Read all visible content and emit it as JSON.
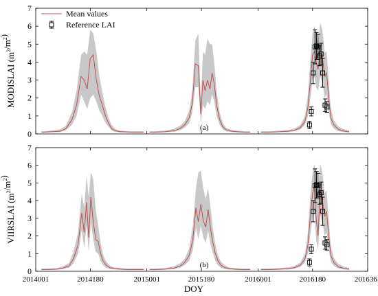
{
  "chart_data": [
    {
      "type": "line",
      "panel_label": "(a)",
      "ylabel": "MODISLAI (m²/m²)",
      "ylabel_text": "MODISLAI (m",
      "ylabel_sup": "2",
      "ylabel_mid": "/m",
      "ylabel_sup2": "2",
      "ylabel_end": ")",
      "ylim": [
        0,
        7
      ],
      "yticks": [
        "0",
        "1",
        "2",
        "3",
        "4",
        "5",
        "6",
        "7"
      ],
      "legend": {
        "placement": "top-left",
        "mean_label": "Mean values",
        "ref_label": "Reference LAI"
      },
      "segments": [
        {
          "x": [
            2014020,
            2014030,
            2014050,
            2014080,
            2014100,
            2014120,
            2014135,
            2014150,
            2014160,
            2014170,
            2014180,
            2014190,
            2014200,
            2014210,
            2014220,
            2014230,
            2014240,
            2014250,
            2014260,
            2014270,
            2014280,
            2014290,
            2014310,
            2014330,
            2014355
          ],
          "mean": [
            0.1,
            0.1,
            0.12,
            0.15,
            0.3,
            0.8,
            1.6,
            3.2,
            3.0,
            2.5,
            4.2,
            4.4,
            3.0,
            2.1,
            1.6,
            1.0,
            0.6,
            0.3,
            0.2,
            0.15,
            0.12,
            0.12,
            0.1,
            0.1,
            0.1
          ],
          "lower": [
            0.08,
            0.08,
            0.09,
            0.1,
            0.2,
            0.5,
            1.0,
            2.2,
            1.8,
            1.4,
            2.0,
            2.2,
            1.8,
            1.3,
            1.0,
            0.6,
            0.4,
            0.2,
            0.12,
            0.1,
            0.08,
            0.08,
            0.07,
            0.07,
            0.07
          ],
          "upper": [
            0.15,
            0.15,
            0.18,
            0.25,
            0.45,
            1.2,
            2.4,
            4.4,
            4.6,
            4.4,
            5.8,
            5.6,
            4.6,
            3.2,
            2.3,
            1.5,
            0.9,
            0.5,
            0.3,
            0.22,
            0.18,
            0.17,
            0.15,
            0.15,
            0.15
          ]
        },
        {
          "x": [
            2015010,
            2015030,
            2015060,
            2015090,
            2015110,
            2015125,
            2015140,
            2015150,
            2015160,
            2015170,
            2015178,
            2015185,
            2015192,
            2015200,
            2015208,
            2015215,
            2015222,
            2015230,
            2015240,
            2015250,
            2015262,
            2015280,
            2015300,
            2015320,
            2015340
          ],
          "mean": [
            0.1,
            0.1,
            0.12,
            0.18,
            0.3,
            0.5,
            0.9,
            1.7,
            3.9,
            3.8,
            1.1,
            3.0,
            2.4,
            3.0,
            2.5,
            3.4,
            2.8,
            1.6,
            0.8,
            0.4,
            0.22,
            0.15,
            0.12,
            0.1,
            0.1
          ],
          "lower": [
            0.07,
            0.07,
            0.09,
            0.12,
            0.2,
            0.35,
            0.6,
            1.2,
            2.6,
            2.6,
            0.6,
            1.6,
            1.4,
            1.8,
            1.6,
            2.2,
            1.8,
            1.0,
            0.5,
            0.25,
            0.14,
            0.1,
            0.08,
            0.07,
            0.07
          ],
          "upper": [
            0.15,
            0.15,
            0.18,
            0.28,
            0.45,
            0.7,
            1.3,
            2.4,
            5.2,
            5.6,
            1.8,
            4.6,
            4.4,
            5.3,
            5.0,
            5.0,
            4.0,
            2.4,
            1.2,
            0.6,
            0.32,
            0.22,
            0.18,
            0.15,
            0.15
          ]
        },
        {
          "x": [
            2016010,
            2016040,
            2016070,
            2016100,
            2016120,
            2016140,
            2016155,
            2016165,
            2016172,
            2016180,
            2016186,
            2016192,
            2016198,
            2016205,
            2016212,
            2016220,
            2016226,
            2016233,
            2016240,
            2016250,
            2016265,
            2016285,
            2016300
          ],
          "mean": [
            0.1,
            0.1,
            0.12,
            0.15,
            0.2,
            0.35,
            0.7,
            1.5,
            2.8,
            4.4,
            4.6,
            4.0,
            3.6,
            4.7,
            4.3,
            3.2,
            3.4,
            2.0,
            0.9,
            0.5,
            0.25,
            0.15,
            0.12
          ],
          "lower": [
            0.07,
            0.07,
            0.09,
            0.1,
            0.14,
            0.25,
            0.5,
            1.0,
            1.9,
            3.0,
            3.2,
            2.6,
            2.4,
            3.2,
            2.9,
            2.0,
            2.2,
            1.2,
            0.55,
            0.3,
            0.15,
            0.1,
            0.08
          ],
          "upper": [
            0.15,
            0.15,
            0.18,
            0.22,
            0.3,
            0.5,
            1.0,
            2.2,
            4.0,
            5.6,
            6.0,
            5.5,
            5.0,
            6.2,
            5.8,
            4.5,
            4.6,
            2.9,
            1.4,
            0.75,
            0.4,
            0.25,
            0.2
          ]
        }
      ],
      "reference": [
        {
          "x": 2016170,
          "y": 0.5,
          "err": 0.2
        },
        {
          "x": 2016176,
          "y": 1.25,
          "err": 0.25
        },
        {
          "x": 2016182,
          "y": 3.4,
          "err": 0.6
        },
        {
          "x": 2016188,
          "y": 4.85,
          "err": 0.95
        },
        {
          "x": 2016193,
          "y": 4.9,
          "err": 0.75
        },
        {
          "x": 2016198,
          "y": 4.85,
          "err": 0.7
        },
        {
          "x": 2016203,
          "y": 4.35,
          "err": 0.55
        },
        {
          "x": 2016208,
          "y": 4.45,
          "err": 0.6
        },
        {
          "x": 2016213,
          "y": 3.4,
          "err": 0.8
        },
        {
          "x": 2016221,
          "y": 1.6,
          "err": 0.35
        },
        {
          "x": 2016227,
          "y": 1.5,
          "err": 0.3
        }
      ]
    },
    {
      "type": "line",
      "panel_label": "(b)",
      "ylabel": "VIIRSLAI (m²/m²)",
      "ylabel_text": "VIIRSLAI (m",
      "ylabel_sup": "2",
      "ylabel_mid": "/m",
      "ylabel_sup2": "2",
      "ylabel_end": ")",
      "ylim": [
        0,
        7
      ],
      "yticks": [
        "0",
        "1",
        "2",
        "3",
        "4",
        "5",
        "6",
        "7"
      ],
      "segments": [
        {
          "x": [
            2014020,
            2014040,
            2014070,
            2014090,
            2014110,
            2014125,
            2014140,
            2014152,
            2014160,
            2014168,
            2014175,
            2014182,
            2014190,
            2014198,
            2014206,
            2014214,
            2014222,
            2014232,
            2014245,
            2014260,
            2014280,
            2014300,
            2014330,
            2014355
          ],
          "mean": [
            0.1,
            0.1,
            0.12,
            0.18,
            0.3,
            0.7,
            1.5,
            3.3,
            2.2,
            3.9,
            1.9,
            4.2,
            2.8,
            1.8,
            1.7,
            1.0,
            0.6,
            0.35,
            0.2,
            0.15,
            0.12,
            0.1,
            0.1,
            0.1
          ],
          "lower": [
            0.07,
            0.07,
            0.09,
            0.12,
            0.2,
            0.45,
            1.0,
            2.3,
            1.3,
            2.6,
            1.1,
            2.8,
            1.8,
            1.1,
            1.0,
            0.6,
            0.35,
            0.2,
            0.12,
            0.1,
            0.08,
            0.07,
            0.07,
            0.07
          ],
          "upper": [
            0.15,
            0.15,
            0.18,
            0.28,
            0.45,
            1.1,
            2.2,
            4.4,
            3.6,
            5.4,
            4.2,
            5.6,
            5.2,
            3.5,
            2.6,
            1.6,
            0.95,
            0.55,
            0.3,
            0.22,
            0.18,
            0.15,
            0.15,
            0.15
          ]
        },
        {
          "x": [
            2015010,
            2015030,
            2015060,
            2015090,
            2015110,
            2015125,
            2015140,
            2015152,
            2015162,
            2015170,
            2015178,
            2015186,
            2015194,
            2015202,
            2015210,
            2015218,
            2015226,
            2015234,
            2015244,
            2015255,
            2015270,
            2015290,
            2015310,
            2015340
          ],
          "mean": [
            0.1,
            0.1,
            0.12,
            0.18,
            0.3,
            0.5,
            0.9,
            1.8,
            3.6,
            2.8,
            3.8,
            2.9,
            2.5,
            3.5,
            2.4,
            1.6,
            1.0,
            0.6,
            0.35,
            0.22,
            0.15,
            0.12,
            0.1,
            0.1
          ],
          "lower": [
            0.07,
            0.07,
            0.09,
            0.12,
            0.2,
            0.35,
            0.6,
            1.2,
            2.5,
            1.8,
            2.6,
            1.9,
            1.6,
            2.3,
            1.5,
            1.0,
            0.6,
            0.35,
            0.2,
            0.13,
            0.1,
            0.08,
            0.07,
            0.07
          ],
          "upper": [
            0.15,
            0.15,
            0.18,
            0.28,
            0.45,
            0.7,
            1.3,
            2.6,
            4.7,
            5.6,
            5.7,
            4.7,
            4.1,
            4.7,
            3.6,
            2.4,
            1.5,
            0.9,
            0.55,
            0.35,
            0.22,
            0.18,
            0.15,
            0.15
          ]
        },
        {
          "x": [
            2016010,
            2016040,
            2016070,
            2016100,
            2016120,
            2016140,
            2016155,
            2016165,
            2016172,
            2016180,
            2016186,
            2016192,
            2016198,
            2016205,
            2016212,
            2016220,
            2016226,
            2016233,
            2016240,
            2016250,
            2016265,
            2016285,
            2016300
          ],
          "mean": [
            0.1,
            0.1,
            0.12,
            0.15,
            0.2,
            0.35,
            0.7,
            1.5,
            3.0,
            4.4,
            4.8,
            3.0,
            2.0,
            4.6,
            4.0,
            3.1,
            3.4,
            2.0,
            0.9,
            0.5,
            0.25,
            0.15,
            0.12
          ],
          "lower": [
            0.07,
            0.07,
            0.09,
            0.1,
            0.14,
            0.25,
            0.5,
            1.0,
            2.0,
            3.0,
            3.3,
            1.8,
            1.2,
            3.2,
            2.8,
            2.0,
            2.2,
            1.2,
            0.55,
            0.3,
            0.15,
            0.1,
            0.08
          ],
          "upper": [
            0.15,
            0.15,
            0.18,
            0.22,
            0.3,
            0.5,
            1.0,
            2.2,
            4.2,
            5.6,
            6.1,
            5.0,
            4.6,
            6.1,
            5.6,
            4.4,
            4.6,
            2.9,
            1.4,
            0.75,
            0.4,
            0.25,
            0.2
          ]
        }
      ],
      "reference": [
        {
          "x": 2016170,
          "y": 0.5,
          "err": 0.2
        },
        {
          "x": 2016176,
          "y": 1.25,
          "err": 0.25
        },
        {
          "x": 2016182,
          "y": 3.4,
          "err": 0.6
        },
        {
          "x": 2016188,
          "y": 4.85,
          "err": 0.95
        },
        {
          "x": 2016193,
          "y": 4.9,
          "err": 0.75
        },
        {
          "x": 2016198,
          "y": 4.85,
          "err": 0.7
        },
        {
          "x": 2016203,
          "y": 4.35,
          "err": 0.55
        },
        {
          "x": 2016208,
          "y": 4.45,
          "err": 0.6
        },
        {
          "x": 2016213,
          "y": 3.4,
          "err": 0.8
        },
        {
          "x": 2016221,
          "y": 1.6,
          "err": 0.35
        },
        {
          "x": 2016227,
          "y": 1.5,
          "err": 0.3
        }
      ]
    }
  ],
  "shared": {
    "xlabel": "DOY",
    "xlim": [
      2014001,
      2016361
    ],
    "xticks": [
      "2014001",
      "2014180",
      "2015001",
      "2015180",
      "2016001",
      "2016180",
      "2016361"
    ],
    "xtick_values": [
      2014001,
      2014180,
      2015001,
      2015180,
      2016001,
      2016180,
      2016361
    ],
    "series_names": {
      "mean": "Mean values",
      "reference": "Reference LAI"
    },
    "colors": {
      "mean": "#c0504d",
      "band": "#c8c8c8",
      "reference": "#000000"
    }
  }
}
